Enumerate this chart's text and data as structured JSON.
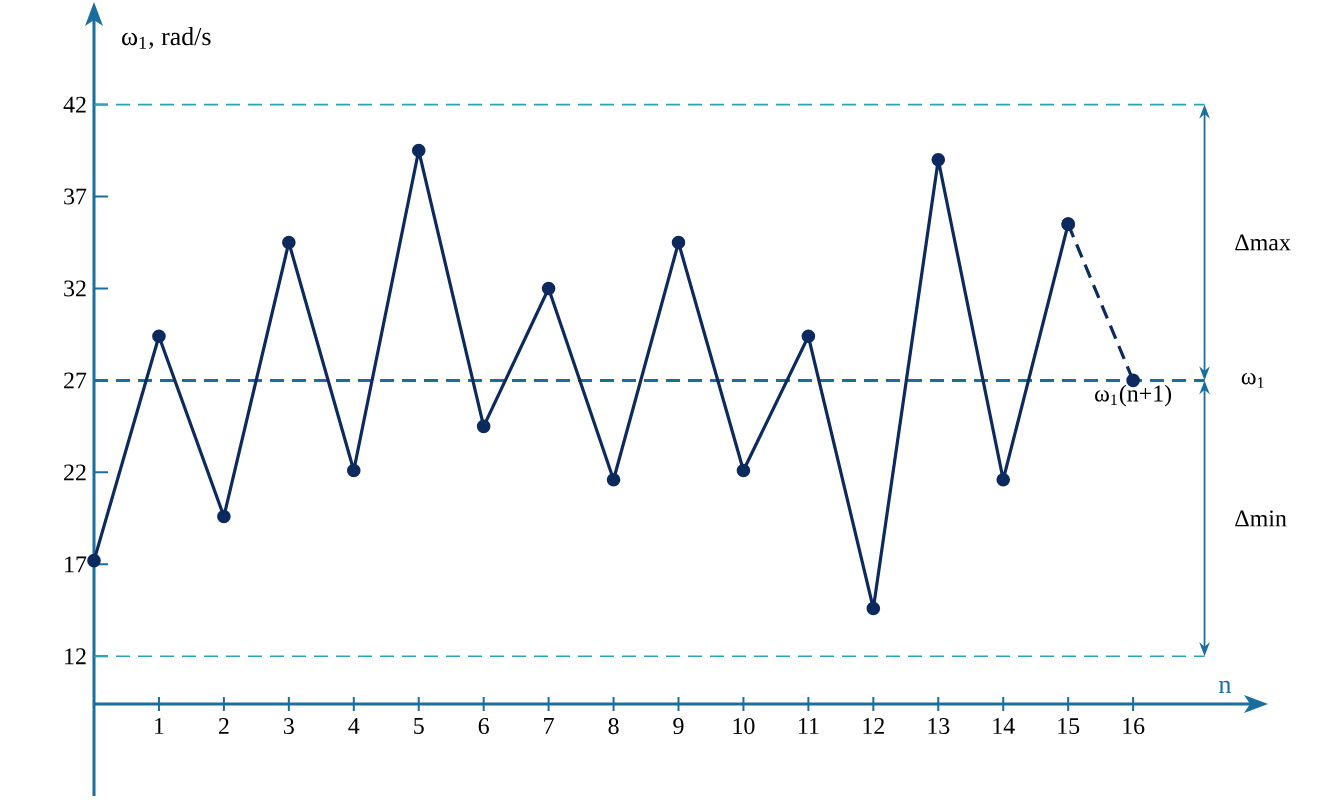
{
  "chart_data": {
    "type": "line",
    "xlabel": "n",
    "ylabel": "ω$_{1}$, rad/s",
    "xlim": [
      0,
      17.8
    ],
    "ylim": [
      4.4,
      46.6
    ],
    "xticks": [
      1,
      2,
      3,
      4,
      5,
      6,
      7,
      8,
      9,
      10,
      11,
      12,
      13,
      14,
      15,
      16
    ],
    "yticks": [
      12,
      17,
      22,
      27,
      32,
      37,
      42
    ],
    "marker": "circle",
    "series": [
      {
        "color": "#0d2a5e",
        "line_style": "solid",
        "x": [
          0,
          1,
          2,
          3,
          4,
          5,
          6,
          7,
          8,
          9,
          10,
          11,
          12,
          13,
          14,
          15
        ],
        "values": [
          17.2,
          29.4,
          19.6,
          34.5,
          22.1,
          39.5,
          24.5,
          32,
          21.6,
          34.5,
          22.1,
          29.4,
          14.6,
          39,
          21.6,
          35.5
        ]
      },
      {
        "color": "#0d2a5e",
        "line_style": "dashed",
        "x": [
          15,
          16
        ],
        "values": [
          35.5,
          27
        ]
      }
    ],
    "ref_lines": [
      {
        "axis": "y",
        "value": 42,
        "color": "#2aa3b5",
        "line_style": "dashed"
      },
      {
        "axis": "y",
        "value": 27,
        "label": "ω$_{1}$",
        "color": "#1a6e9e",
        "line_style": "dashed"
      },
      {
        "axis": "y",
        "value": 12,
        "color": "#2aa3b5",
        "line_style": "dashed"
      }
    ],
    "annotations": [
      "Δmax",
      "Δmin",
      {
        "text": "ω$_{1}$(n+1)",
        "x": 16,
        "y": 27
      }
    ]
  }
}
